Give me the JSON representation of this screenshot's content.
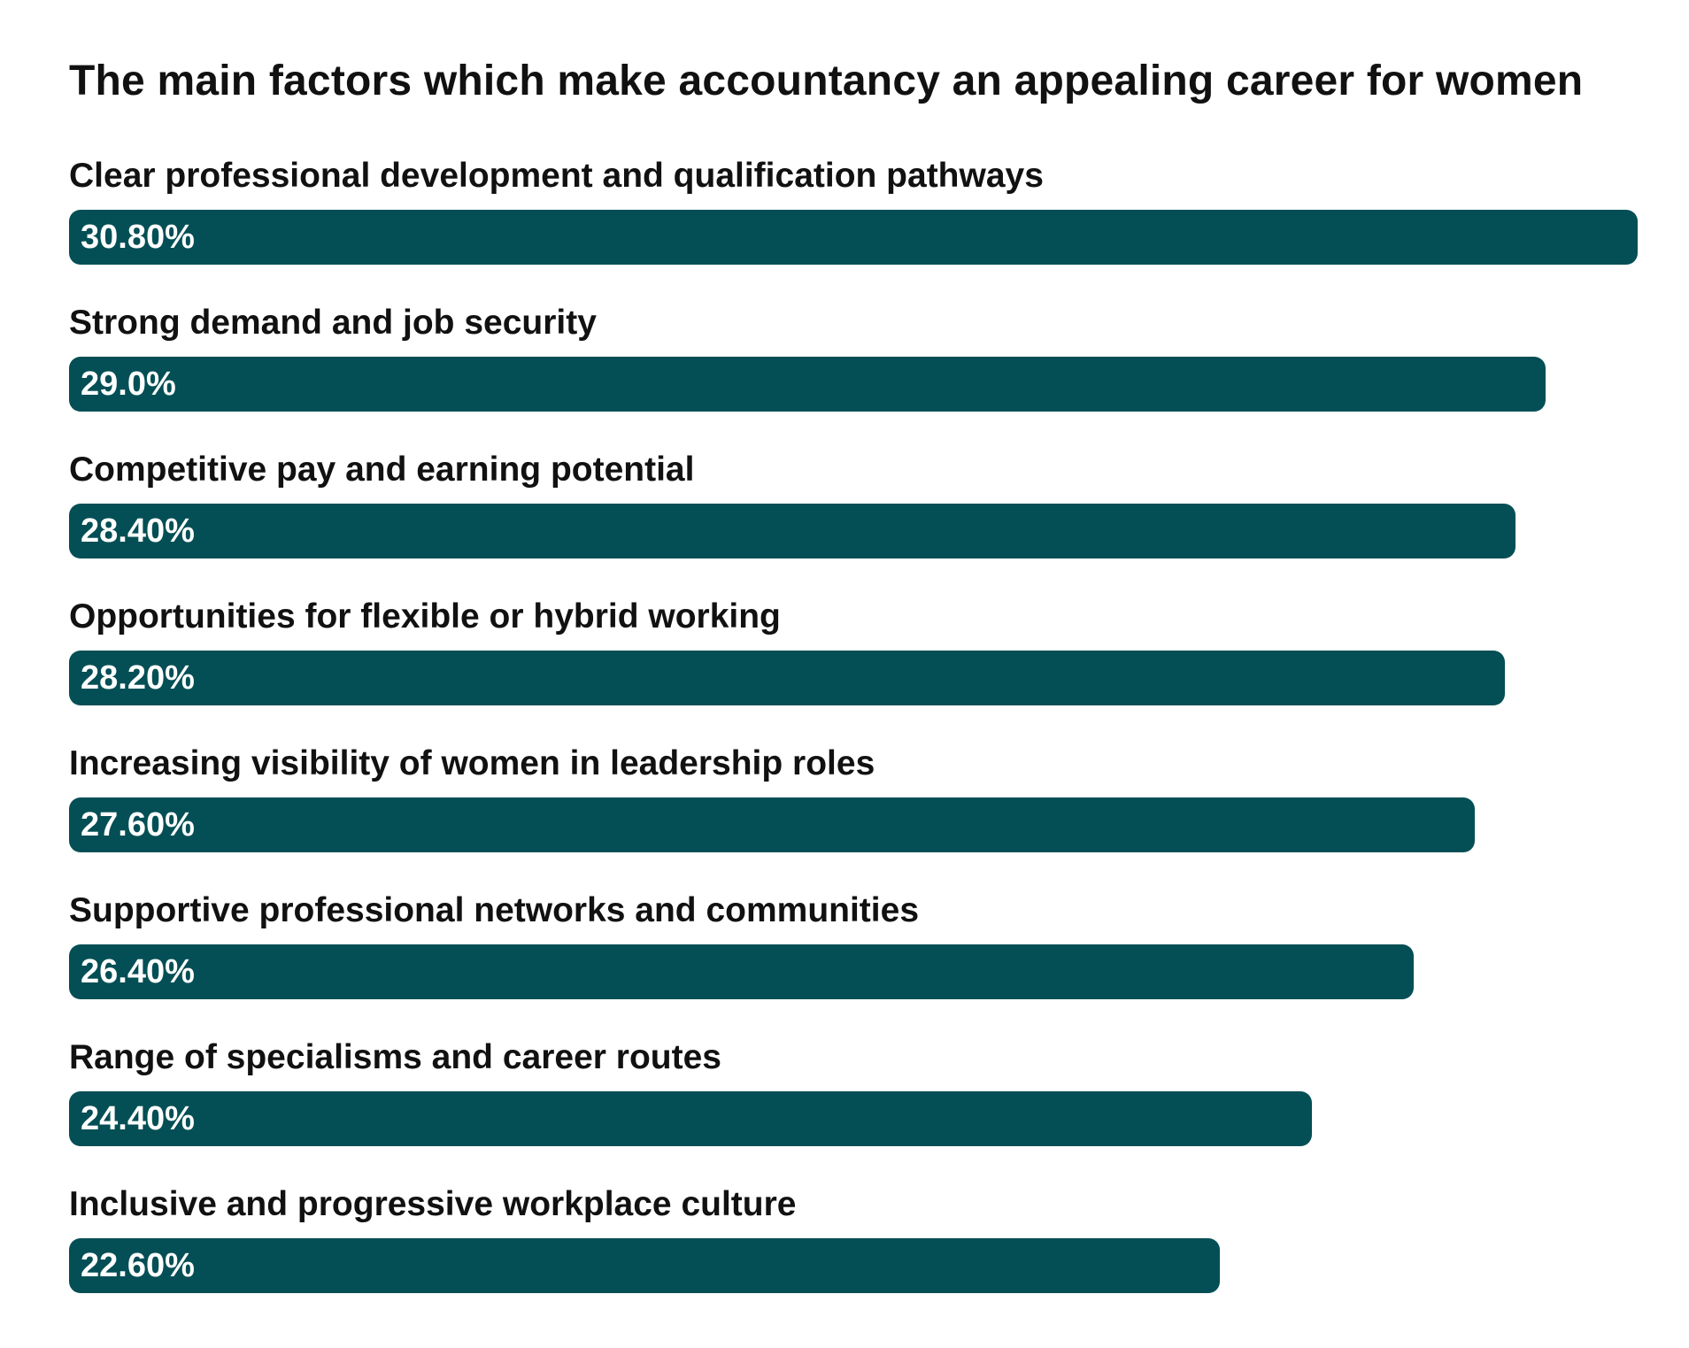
{
  "chart_data": {
    "type": "bar",
    "orientation": "horizontal",
    "title": "The main factors which make accountancy an appealing career for women",
    "xlabel": "",
    "ylabel": "",
    "grid": false,
    "legend": "none",
    "bar_color": "#034f55",
    "label_color": "#ffffff",
    "xlim": [
      0,
      30.8
    ],
    "categories": [
      "Clear professional development and qualification pathways",
      "Strong demand and job security",
      "Competitive pay and earning potential",
      "Opportunities for flexible or hybrid working",
      "Increasing visibility of women in leadership roles",
      "Supportive professional networks and communities",
      "Range of specialisms and career routes",
      "Inclusive and progressive workplace culture"
    ],
    "values": [
      30.8,
      29.0,
      28.4,
      28.2,
      27.6,
      26.4,
      24.4,
      22.6
    ],
    "value_labels": [
      "30.80%",
      "29.0%",
      "28.40%",
      "28.20%",
      "27.60%",
      "26.40%",
      "24.40%",
      "22.60%"
    ]
  }
}
